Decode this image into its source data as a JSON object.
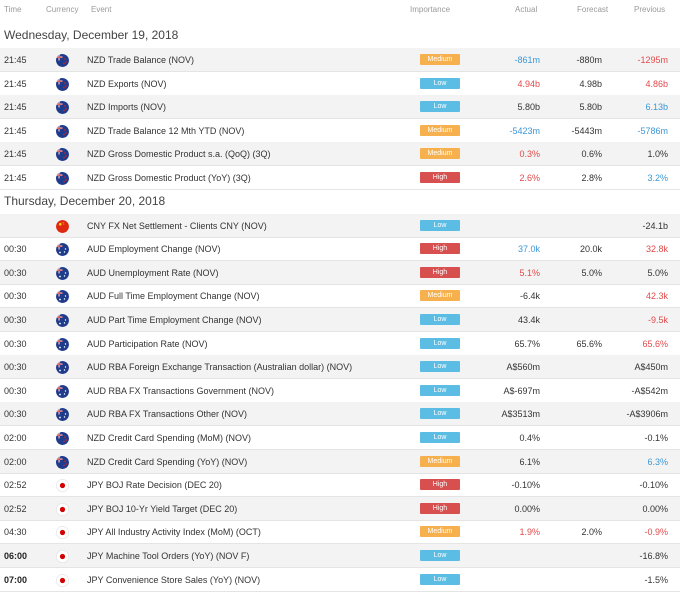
{
  "header": {
    "time": "Time",
    "currency": "Currency",
    "event": "Event",
    "importance": "Importance",
    "actual": "Actual",
    "forecast": "Forecast",
    "previous": "Previous"
  },
  "colors": {
    "high": "#d84f4f",
    "medium": "#f6b14e",
    "low": "#5bbde3",
    "negative": "#e24a4a",
    "positive": "#3b97d8"
  },
  "days": [
    {
      "date": "Wednesday, December 19, 2018",
      "events": [
        {
          "time": "21:45",
          "flag": "nz-flag-icon",
          "event": "NZD Trade Balance (NOV)",
          "importance": "Medium",
          "actual": "-861m",
          "actual_tone": "pos",
          "forecast": "-880m",
          "previous": "-1295m",
          "previous_tone": "neg"
        },
        {
          "time": "21:45",
          "flag": "nz-flag-icon",
          "event": "NZD Exports (NOV)",
          "importance": "Low",
          "actual": "4.94b",
          "actual_tone": "neg",
          "forecast": "4.98b",
          "previous": "4.86b",
          "previous_tone": "neg"
        },
        {
          "time": "21:45",
          "flag": "nz-flag-icon",
          "event": "NZD Imports (NOV)",
          "importance": "Low",
          "actual": "5.80b",
          "actual_tone": "",
          "forecast": "5.80b",
          "previous": "6.13b",
          "previous_tone": "pos"
        },
        {
          "time": "21:45",
          "flag": "nz-flag-icon",
          "event": "NZD Trade Balance 12 Mth YTD (NOV)",
          "importance": "Medium",
          "actual": "-5423m",
          "actual_tone": "pos",
          "forecast": "-5443m",
          "previous": "-5786m",
          "previous_tone": "pos"
        },
        {
          "time": "21:45",
          "flag": "nz-flag-icon",
          "event": "NZD Gross Domestic Product s.a. (QoQ) (3Q)",
          "importance": "Medium",
          "actual": "0.3%",
          "actual_tone": "neg",
          "forecast": "0.6%",
          "previous": "1.0%",
          "previous_tone": ""
        },
        {
          "time": "21:45",
          "flag": "nz-flag-icon",
          "event": "NZD Gross Domestic Product (YoY) (3Q)",
          "importance": "High",
          "actual": "2.6%",
          "actual_tone": "neg",
          "forecast": "2.8%",
          "previous": "3.2%",
          "previous_tone": "pos"
        }
      ]
    },
    {
      "date": "Thursday, December 20, 2018",
      "events": [
        {
          "time": "",
          "flag": "cn-flag-icon",
          "event": "CNY FX Net Settlement - Clients CNY (NOV)",
          "importance": "Low",
          "actual": "",
          "actual_tone": "",
          "forecast": "",
          "previous": "-24.1b",
          "previous_tone": ""
        },
        {
          "time": "00:30",
          "flag": "au-flag-icon",
          "event": "AUD Employment Change (NOV)",
          "importance": "High",
          "actual": "37.0k",
          "actual_tone": "pos",
          "forecast": "20.0k",
          "previous": "32.8k",
          "previous_tone": "neg"
        },
        {
          "time": "00:30",
          "flag": "au-flag-icon",
          "event": "AUD Unemployment Rate (NOV)",
          "importance": "High",
          "actual": "5.1%",
          "actual_tone": "neg",
          "forecast": "5.0%",
          "previous": "5.0%",
          "previous_tone": ""
        },
        {
          "time": "00:30",
          "flag": "au-flag-icon",
          "event": "AUD Full Time Employment Change (NOV)",
          "importance": "Medium",
          "actual": "-6.4k",
          "actual_tone": "",
          "forecast": "",
          "previous": "42.3k",
          "previous_tone": "neg"
        },
        {
          "time": "00:30",
          "flag": "au-flag-icon",
          "event": "AUD Part Time Employment Change (NOV)",
          "importance": "Low",
          "actual": "43.4k",
          "actual_tone": "",
          "forecast": "",
          "previous": "-9.5k",
          "previous_tone": "neg"
        },
        {
          "time": "00:30",
          "flag": "au-flag-icon",
          "event": "AUD Participation Rate (NOV)",
          "importance": "Low",
          "actual": "65.7%",
          "actual_tone": "",
          "forecast": "65.6%",
          "previous": "65.6%",
          "previous_tone": "neg"
        },
        {
          "time": "00:30",
          "flag": "au-flag-icon",
          "event": "AUD RBA Foreign Exchange Transaction (Australian dollar) (NOV)",
          "importance": "Low",
          "actual": "A$560m",
          "actual_tone": "",
          "forecast": "",
          "previous": "A$450m",
          "previous_tone": ""
        },
        {
          "time": "00:30",
          "flag": "au-flag-icon",
          "event": "AUD RBA FX Transactions Government (NOV)",
          "importance": "Low",
          "actual": "A$-697m",
          "actual_tone": "",
          "forecast": "",
          "previous": "-A$542m",
          "previous_tone": ""
        },
        {
          "time": "00:30",
          "flag": "au-flag-icon",
          "event": "AUD RBA FX Transactions Other (NOV)",
          "importance": "Low",
          "actual": "A$3513m",
          "actual_tone": "",
          "forecast": "",
          "previous": "-A$3906m",
          "previous_tone": ""
        },
        {
          "time": "02:00",
          "flag": "nz-flag-icon",
          "event": "NZD Credit Card Spending (MoM) (NOV)",
          "importance": "Low",
          "actual": "0.4%",
          "actual_tone": "",
          "forecast": "",
          "previous": "-0.1%",
          "previous_tone": ""
        },
        {
          "time": "02:00",
          "flag": "nz-flag-icon",
          "event": "NZD Credit Card Spending (YoY) (NOV)",
          "importance": "Medium",
          "actual": "6.1%",
          "actual_tone": "",
          "forecast": "",
          "previous": "6.3%",
          "previous_tone": "pos"
        },
        {
          "time": "02:52",
          "flag": "jp-flag-icon",
          "event": "JPY BOJ Rate Decision (DEC 20)",
          "importance": "High",
          "actual": "-0.10%",
          "actual_tone": "",
          "forecast": "",
          "previous": "-0.10%",
          "previous_tone": ""
        },
        {
          "time": "02:52",
          "flag": "jp-flag-icon",
          "event": "JPY BOJ 10-Yr Yield Target (DEC 20)",
          "importance": "High",
          "actual": "0.00%",
          "actual_tone": "",
          "forecast": "",
          "previous": "0.00%",
          "previous_tone": ""
        },
        {
          "time": "04:30",
          "flag": "jp-flag-icon",
          "event": "JPY All Industry Activity Index (MoM) (OCT)",
          "importance": "Medium",
          "actual": "1.9%",
          "actual_tone": "neg",
          "forecast": "2.0%",
          "previous": "-0.9%",
          "previous_tone": "neg"
        },
        {
          "time": "06:00",
          "time_bold": true,
          "flag": "jp-flag-icon",
          "event": "JPY Machine Tool Orders (YoY) (NOV F)",
          "importance": "Low",
          "actual": "",
          "actual_tone": "",
          "forecast": "",
          "previous": "-16.8%",
          "previous_tone": ""
        },
        {
          "time": "07:00",
          "time_bold": true,
          "flag": "jp-flag-icon",
          "event": "JPY Convenience Store Sales (YoY) (NOV)",
          "importance": "Low",
          "actual": "",
          "actual_tone": "",
          "forecast": "",
          "previous": "-1.5%",
          "previous_tone": ""
        }
      ]
    }
  ]
}
